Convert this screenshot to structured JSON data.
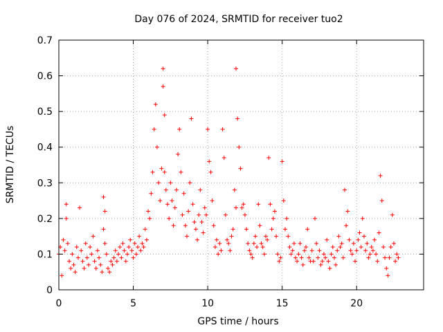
{
  "chart_data": {
    "type": "scatter",
    "title": "Day 076 of 2024, SRMTID for receiver tuo2",
    "xlabel": "GPS time / hours",
    "ylabel": "SRMTID / TECUs",
    "xlim": [
      0,
      24.5
    ],
    "ylim": [
      0,
      0.7
    ],
    "xticks": [
      0,
      5,
      10,
      15,
      20
    ],
    "yticks": [
      0,
      0.1,
      0.2,
      0.3,
      0.4,
      0.5,
      0.6,
      0.7
    ],
    "grid": true,
    "series": [
      {
        "name": "SRMTID",
        "color": "#ff0000",
        "marker": "+",
        "x": [
          0.0,
          0.1,
          0.2,
          0.3,
          0.4,
          0.5,
          0.5,
          0.6,
          0.7,
          0.8,
          0.9,
          1.0,
          1.1,
          1.2,
          1.3,
          1.4,
          1.5,
          1.6,
          1.7,
          1.8,
          1.9,
          2.0,
          2.1,
          2.2,
          2.3,
          2.4,
          2.5,
          2.6,
          2.7,
          2.8,
          2.9,
          3.0,
          3.0,
          3.1,
          3.1,
          3.2,
          3.3,
          3.4,
          3.5,
          3.6,
          3.7,
          3.8,
          3.9,
          4.0,
          4.1,
          4.2,
          4.3,
          4.4,
          4.5,
          4.6,
          4.7,
          4.8,
          4.9,
          5.0,
          5.1,
          5.2,
          5.3,
          5.4,
          5.5,
          5.6,
          5.7,
          5.8,
          5.9,
          6.0,
          6.1,
          6.2,
          6.3,
          6.4,
          6.5,
          6.6,
          6.7,
          6.8,
          6.9,
          7.0,
          7.0,
          7.1,
          7.1,
          7.2,
          7.3,
          7.4,
          7.5,
          7.6,
          7.7,
          7.8,
          7.9,
          8.0,
          8.1,
          8.2,
          8.3,
          8.4,
          8.5,
          8.6,
          8.7,
          8.8,
          8.9,
          9.0,
          9.1,
          9.2,
          9.3,
          9.4,
          9.5,
          9.6,
          9.7,
          9.8,
          9.9,
          10.0,
          10.1,
          10.2,
          10.3,
          10.4,
          10.5,
          10.6,
          10.7,
          10.8,
          10.9,
          11.0,
          11.1,
          11.2,
          11.3,
          11.4,
          11.5,
          11.6,
          11.7,
          11.8,
          11.9,
          11.9,
          12.0,
          12.1,
          12.2,
          12.3,
          12.4,
          12.5,
          12.6,
          12.7,
          12.8,
          12.9,
          13.0,
          13.1,
          13.2,
          13.3,
          13.4,
          13.5,
          13.6,
          13.7,
          13.8,
          13.9,
          14.0,
          14.1,
          14.2,
          14.3,
          14.4,
          14.5,
          14.6,
          14.7,
          14.8,
          14.9,
          15.0,
          15.1,
          15.2,
          15.3,
          15.4,
          15.5,
          15.6,
          15.7,
          15.8,
          15.9,
          16.0,
          16.1,
          16.2,
          16.3,
          16.4,
          16.5,
          16.6,
          16.7,
          16.8,
          16.9,
          17.0,
          17.1,
          17.2,
          17.3,
          17.4,
          17.5,
          17.6,
          17.7,
          17.8,
          17.9,
          18.0,
          18.1,
          18.2,
          18.3,
          18.4,
          18.5,
          18.6,
          18.7,
          18.8,
          18.9,
          19.0,
          19.1,
          19.2,
          19.3,
          19.4,
          19.5,
          19.6,
          19.7,
          19.8,
          19.9,
          20.0,
          20.1,
          20.2,
          20.3,
          20.4,
          20.5,
          20.6,
          20.7,
          20.8,
          20.9,
          21.0,
          21.1,
          21.2,
          21.3,
          21.4,
          21.5,
          21.6,
          21.7,
          21.8,
          21.9,
          22.0,
          22.1,
          22.2,
          22.3,
          22.4,
          22.5,
          22.6,
          22.7,
          22.8
        ],
        "y": [
          0.1,
          0.12,
          0.04,
          0.14,
          0.11,
          0.24,
          0.2,
          0.13,
          0.08,
          0.06,
          0.1,
          0.07,
          0.05,
          0.12,
          0.09,
          0.23,
          0.11,
          0.08,
          0.06,
          0.13,
          0.09,
          0.07,
          0.12,
          0.1,
          0.15,
          0.08,
          0.06,
          0.11,
          0.09,
          0.07,
          0.05,
          0.26,
          0.17,
          0.22,
          0.13,
          0.1,
          0.06,
          0.05,
          0.08,
          0.07,
          0.09,
          0.11,
          0.08,
          0.1,
          0.12,
          0.09,
          0.13,
          0.11,
          0.08,
          0.1,
          0.12,
          0.14,
          0.11,
          0.09,
          0.13,
          0.1,
          0.12,
          0.15,
          0.11,
          0.13,
          0.12,
          0.17,
          0.14,
          0.22,
          0.2,
          0.27,
          0.33,
          0.45,
          0.52,
          0.4,
          0.3,
          0.25,
          0.34,
          0.62,
          0.57,
          0.49,
          0.33,
          0.28,
          0.24,
          0.2,
          0.3,
          0.25,
          0.18,
          0.23,
          0.28,
          0.38,
          0.45,
          0.33,
          0.21,
          0.27,
          0.18,
          0.15,
          0.22,
          0.3,
          0.48,
          0.24,
          0.19,
          0.17,
          0.14,
          0.21,
          0.28,
          0.19,
          0.16,
          0.23,
          0.21,
          0.45,
          0.36,
          0.33,
          0.25,
          0.18,
          0.12,
          0.14,
          0.1,
          0.13,
          0.11,
          0.45,
          0.37,
          0.21,
          0.14,
          0.13,
          0.11,
          0.15,
          0.17,
          0.28,
          0.23,
          0.62,
          0.48,
          0.4,
          0.34,
          0.23,
          0.24,
          0.21,
          0.17,
          0.13,
          0.11,
          0.1,
          0.09,
          0.13,
          0.15,
          0.12,
          0.24,
          0.18,
          0.13,
          0.12,
          0.1,
          0.15,
          0.14,
          0.37,
          0.24,
          0.17,
          0.2,
          0.22,
          0.15,
          0.1,
          0.08,
          0.09,
          0.36,
          0.25,
          0.17,
          0.2,
          0.15,
          0.12,
          0.1,
          0.11,
          0.13,
          0.09,
          0.08,
          0.1,
          0.13,
          0.09,
          0.07,
          0.11,
          0.12,
          0.17,
          0.09,
          0.08,
          0.11,
          0.08,
          0.2,
          0.13,
          0.09,
          0.11,
          0.07,
          0.08,
          0.1,
          0.09,
          0.14,
          0.08,
          0.06,
          0.1,
          0.12,
          0.09,
          0.07,
          0.11,
          0.15,
          0.12,
          0.13,
          0.09,
          0.28,
          0.18,
          0.22,
          0.14,
          0.11,
          0.1,
          0.13,
          0.08,
          0.11,
          0.14,
          0.16,
          0.12,
          0.2,
          0.15,
          0.11,
          0.13,
          0.09,
          0.1,
          0.12,
          0.11,
          0.14,
          0.1,
          0.08,
          0.16,
          0.32,
          0.25,
          0.12,
          0.09,
          0.06,
          0.04,
          0.09,
          0.12,
          0.21,
          0.13,
          0.08,
          0.1,
          0.09
        ]
      }
    ]
  }
}
